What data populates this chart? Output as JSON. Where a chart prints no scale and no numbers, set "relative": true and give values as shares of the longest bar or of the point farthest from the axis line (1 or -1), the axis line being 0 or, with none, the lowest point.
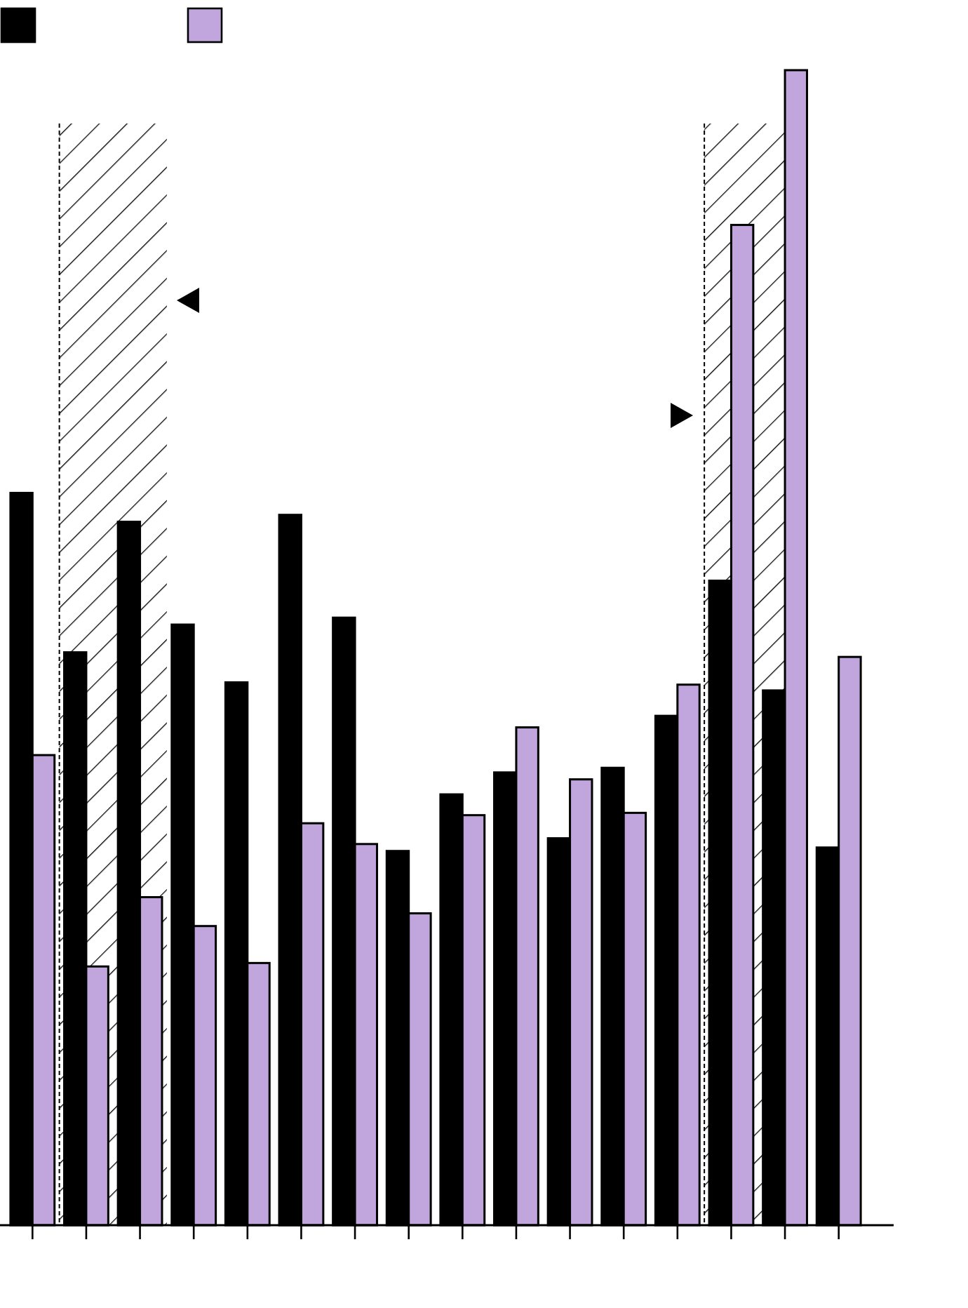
{
  "chart_data": {
    "type": "bar",
    "relative": true,
    "categories": [
      null,
      null,
      null,
      null,
      null,
      null,
      null,
      null,
      null,
      null,
      null,
      null,
      null,
      null,
      null,
      null
    ],
    "series": [
      {
        "color": "#000000",
        "values": [
          0.634,
          0.496,
          0.609,
          0.52,
          0.47,
          0.615,
          0.526,
          0.324,
          0.373,
          0.392,
          0.335,
          0.396,
          0.441,
          0.558,
          0.463,
          0.327
        ]
      },
      {
        "color": "#c0a6dc",
        "values": [
          0.407,
          0.224,
          0.284,
          0.259,
          0.227,
          0.348,
          0.33,
          0.27,
          0.355,
          0.431,
          0.386,
          0.357,
          0.468,
          0.866,
          1,
          0.492
        ]
      }
    ]
  }
}
